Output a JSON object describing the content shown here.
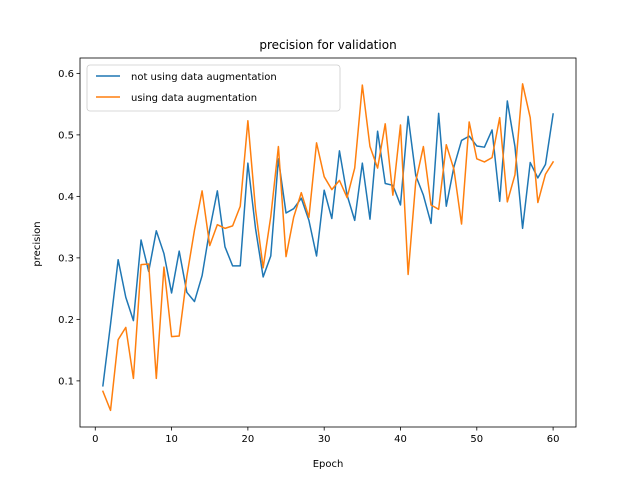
{
  "chart_data": {
    "type": "line",
    "title": "precision for validation",
    "xlabel": "Epoch",
    "ylabel": "precision",
    "xlim": [
      -2,
      63
    ],
    "ylim": [
      0.025,
      0.625
    ],
    "xticks": [
      0,
      10,
      20,
      30,
      40,
      50,
      60
    ],
    "yticks": [
      0.1,
      0.2,
      0.3,
      0.4,
      0.5,
      0.6
    ],
    "ytick_labels": [
      "0.1",
      "0.2",
      "0.3",
      "0.4",
      "0.5",
      "0.6"
    ],
    "grid": false,
    "legend_position": "upper-left",
    "x": [
      1,
      2,
      3,
      4,
      5,
      6,
      7,
      8,
      9,
      10,
      11,
      12,
      13,
      14,
      15,
      16,
      17,
      18,
      19,
      20,
      21,
      22,
      23,
      24,
      25,
      26,
      27,
      28,
      29,
      30,
      31,
      32,
      33,
      34,
      35,
      36,
      37,
      38,
      39,
      40,
      41,
      42,
      43,
      44,
      45,
      46,
      47,
      48,
      49,
      50,
      51,
      52,
      53,
      54,
      55,
      56,
      57,
      58,
      59,
      60
    ],
    "series": [
      {
        "name": "not using data augmentation",
        "color": "#1f77b4",
        "values": [
          0.092,
          0.192,
          0.297,
          0.236,
          0.198,
          0.329,
          0.278,
          0.344,
          0.307,
          0.243,
          0.311,
          0.244,
          0.229,
          0.271,
          0.346,
          0.409,
          0.318,
          0.287,
          0.287,
          0.454,
          0.348,
          0.269,
          0.303,
          0.461,
          0.373,
          0.38,
          0.397,
          0.361,
          0.303,
          0.41,
          0.364,
          0.474,
          0.402,
          0.361,
          0.454,
          0.363,
          0.506,
          0.421,
          0.418,
          0.386,
          0.53,
          0.434,
          0.402,
          0.356,
          0.535,
          0.384,
          0.448,
          0.491,
          0.498,
          0.482,
          0.48,
          0.508,
          0.392,
          0.555,
          0.481,
          0.348,
          0.455,
          0.43,
          0.452,
          0.534
        ]
      },
      {
        "name": "using data augmentation",
        "color": "#ff7f0e",
        "values": [
          0.083,
          0.052,
          0.167,
          0.187,
          0.104,
          0.289,
          0.29,
          0.104,
          0.285,
          0.172,
          0.173,
          0.27,
          0.345,
          0.409,
          0.32,
          0.354,
          0.348,
          0.352,
          0.384,
          0.523,
          0.379,
          0.284,
          0.367,
          0.481,
          0.302,
          0.366,
          0.406,
          0.366,
          0.487,
          0.432,
          0.411,
          0.426,
          0.398,
          0.446,
          0.581,
          0.481,
          0.446,
          0.518,
          0.402,
          0.516,
          0.273,
          0.424,
          0.481,
          0.386,
          0.379,
          0.484,
          0.444,
          0.355,
          0.521,
          0.461,
          0.456,
          0.463,
          0.528,
          0.391,
          0.435,
          0.583,
          0.528,
          0.39,
          0.436,
          0.456
        ]
      }
    ]
  }
}
